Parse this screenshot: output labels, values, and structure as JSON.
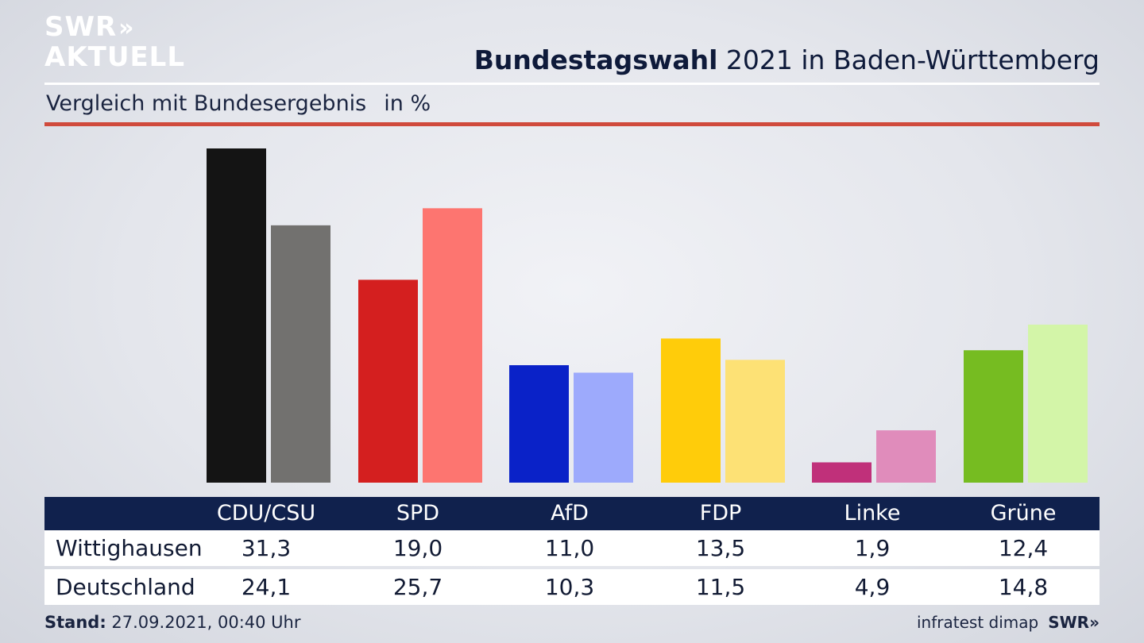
{
  "brand": {
    "line1": "SWR",
    "chevrons": "»",
    "line2": "AKTUELL"
  },
  "header": {
    "title_bold": "Bundestagswahl",
    "title_rest": " 2021 in Baden-Württemberg"
  },
  "subheader": {
    "text": "Vergleich mit Bundesergebnis",
    "unit": "in %"
  },
  "chart_data": {
    "type": "bar",
    "categories": [
      "CDU/CSU",
      "SPD",
      "AfD",
      "FDP",
      "Linke",
      "Grüne"
    ],
    "series": [
      {
        "name": "Wittighausen",
        "values": [
          31.3,
          19.0,
          11.0,
          13.5,
          1.9,
          12.4
        ],
        "colors": [
          "#141414",
          "#d41f1f",
          "#0a22c8",
          "#ffcc0a",
          "#c0307a",
          "#76bc21"
        ]
      },
      {
        "name": "Deutschland",
        "values": [
          24.1,
          25.7,
          10.3,
          11.5,
          4.9,
          14.8
        ],
        "colors": [
          "#72716f",
          "#fd7570",
          "#9daafc",
          "#fde175",
          "#e08cbb",
          "#d3f5a8"
        ]
      }
    ],
    "ylim": [
      0,
      31.3
    ],
    "grid": false
  },
  "table": {
    "headers": [
      "CDU/CSU",
      "SPD",
      "AfD",
      "FDP",
      "Linke",
      "Grüne"
    ],
    "rows": [
      {
        "label": "Wittighausen",
        "values": [
          "31,3",
          "19,0",
          "11,0",
          "13,5",
          "1,9",
          "12,4"
        ]
      },
      {
        "label": "Deutschland",
        "values": [
          "24,1",
          "25,7",
          "10,3",
          "11,5",
          "4,9",
          "14,8"
        ]
      }
    ]
  },
  "footer": {
    "stand_label": "Stand:",
    "stand_value": " 27.09.2021, 00:40 Uhr",
    "source": "infratest dimap",
    "logo": "SWR»"
  }
}
